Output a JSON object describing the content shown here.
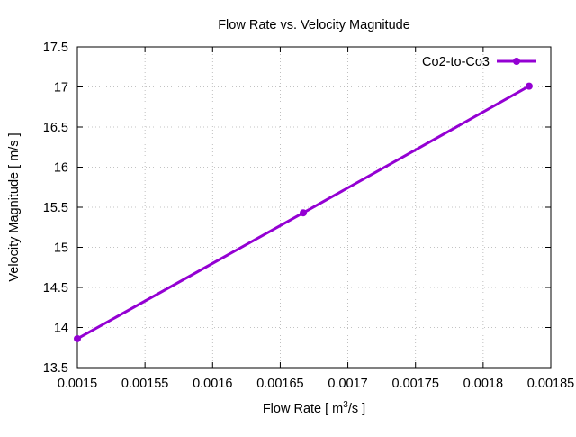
{
  "chart_data": {
    "type": "line",
    "title": "Flow Rate vs. Velocity Magnitude",
    "xlabel_main": "Flow Rate [ m",
    "xlabel_sup": "3",
    "xlabel_tail": "/s ]",
    "ylabel": "Velocity Magnitude [ m/s ]",
    "xlim": [
      0.0015,
      0.00185
    ],
    "ylim": [
      13.5,
      17.5
    ],
    "xticks": [
      0.0015,
      0.00155,
      0.0016,
      0.00165,
      0.0017,
      0.00175,
      0.0018,
      0.00185
    ],
    "xtick_labels": [
      "0.0015",
      "0.00155",
      "0.0016",
      "0.00165",
      "0.0017",
      "0.00175",
      "0.0018",
      "0.00185"
    ],
    "yticks": [
      13.5,
      14,
      14.5,
      15,
      15.5,
      16,
      16.5,
      17,
      17.5
    ],
    "ytick_labels": [
      "13.5",
      "14",
      "14.5",
      "15",
      "15.5",
      "16",
      "16.5",
      "17",
      "17.5"
    ],
    "grid": true,
    "legend_position": "top-right",
    "series": [
      {
        "name": "Co2-to-Co3",
        "color": "#9400d3",
        "x": [
          0.0015,
          0.001667,
          0.001834
        ],
        "y": [
          13.86,
          15.43,
          17.01
        ]
      }
    ]
  }
}
